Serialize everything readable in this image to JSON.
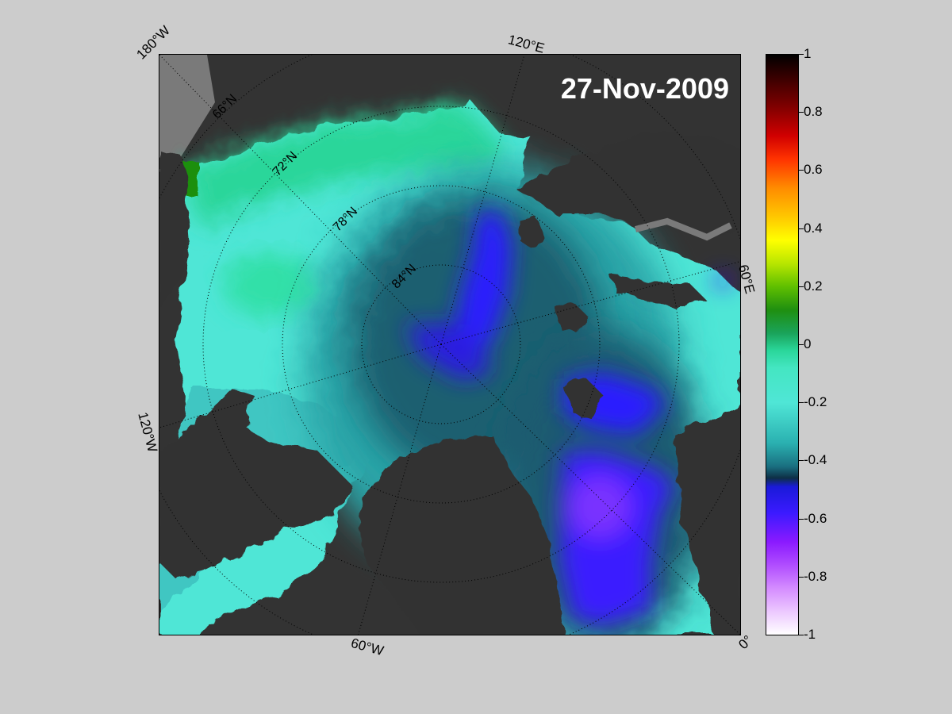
{
  "map": {
    "date": "27-Nov-2009",
    "lon_labels": {
      "w180": "180°W",
      "e120": "120°E",
      "e60": "60°E",
      "w120": "120°W",
      "w60": "60°W",
      "e0": "0°"
    },
    "lat_labels": {
      "n66": "66°N",
      "n72": "72°N",
      "n78": "78°N",
      "n84": "84°N"
    }
  },
  "colorbar": {
    "ticks": [
      "1",
      "0.8",
      "0.6",
      "0.4",
      "0.2",
      "0",
      "-0.2",
      "-0.4",
      "-0.6",
      "-0.8",
      "-1"
    ],
    "range": [
      -1,
      1
    ]
  },
  "colors": {
    "background": "#cccccc",
    "land": "#333333",
    "coast_gray": "#7a7a7a",
    "cyan": "#4fe6d6",
    "green": "#2ad69a",
    "teal_dark": "#1a5f6f",
    "blue": "#2a1aff",
    "violet": "#8a3aff"
  }
}
